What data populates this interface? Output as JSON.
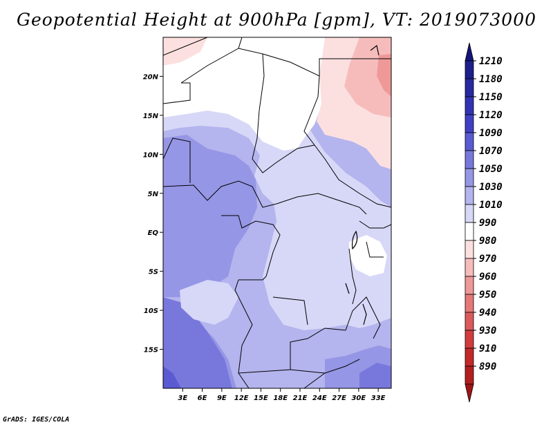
{
  "title": "Geopotential Height at 900hPa [gpm], VT: 2019073000",
  "credit": "GrADS: IGES/COLA",
  "map": {
    "type": "filled-contour-map",
    "lon_range": [
      0,
      35
    ],
    "lat_range": [
      -20,
      25
    ],
    "x_ticks": [
      {
        "lon": 3,
        "label": "3E"
      },
      {
        "lon": 6,
        "label": "6E"
      },
      {
        "lon": 9,
        "label": "9E"
      },
      {
        "lon": 12,
        "label": "12E"
      },
      {
        "lon": 15,
        "label": "15E"
      },
      {
        "lon": 18,
        "label": "18E"
      },
      {
        "lon": 21,
        "label": "21E"
      },
      {
        "lon": 24,
        "label": "24E"
      },
      {
        "lon": 27,
        "label": "27E"
      },
      {
        "lon": 30,
        "label": "30E"
      },
      {
        "lon": 33,
        "label": "33E"
      }
    ],
    "y_ticks": [
      {
        "lat": 20,
        "label": "20N"
      },
      {
        "lat": 15,
        "label": "15N"
      },
      {
        "lat": 10,
        "label": "10N"
      },
      {
        "lat": 5,
        "label": "5N"
      },
      {
        "lat": 0,
        "label": "EQ"
      },
      {
        "lat": -5,
        "label": "5S"
      },
      {
        "lat": -10,
        "label": "10S"
      },
      {
        "lat": -15,
        "label": "15S"
      }
    ]
  },
  "colorbar": {
    "levels": [
      {
        "label": "1210",
        "color": "#1e1e8c"
      },
      {
        "label": "1180",
        "color": "#2828a0"
      },
      {
        "label": "1150",
        "color": "#3232b4"
      },
      {
        "label": "1120",
        "color": "#4040c4"
      },
      {
        "label": "1090",
        "color": "#5a5ad2"
      },
      {
        "label": "1070",
        "color": "#7878dc"
      },
      {
        "label": "1050",
        "color": "#9696e6"
      },
      {
        "label": "1030",
        "color": "#b4b4ee"
      },
      {
        "label": "1010",
        "color": "#d7d7f7"
      },
      {
        "label": "990",
        "color": "#ffffff"
      },
      {
        "label": "980",
        "color": "#fce0e0"
      },
      {
        "label": "970",
        "color": "#f6bcbc"
      },
      {
        "label": "960",
        "color": "#ef9898"
      },
      {
        "label": "950",
        "color": "#e67878"
      },
      {
        "label": "940",
        "color": "#dc5a5a"
      },
      {
        "label": "930",
        "color": "#d23c3c"
      },
      {
        "label": "910",
        "color": "#c42828"
      },
      {
        "label": "890",
        "color": "#b41e1e"
      }
    ],
    "top_triangle_color": "#14147a",
    "bottom_triangle_color": "#a01414"
  }
}
